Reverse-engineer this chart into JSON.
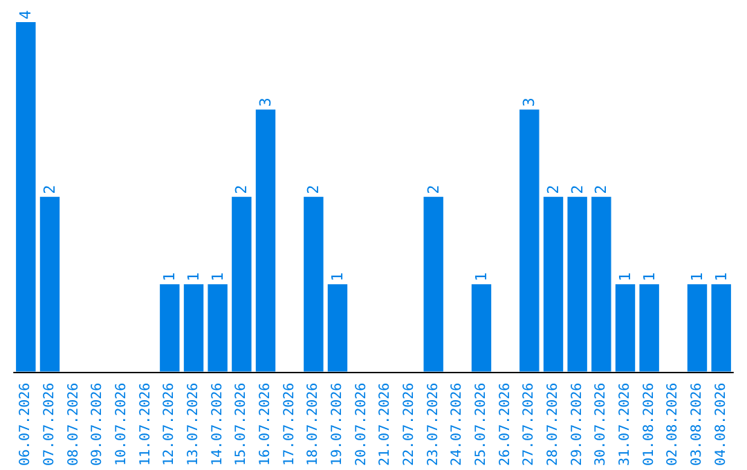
{
  "chart_data": {
    "type": "bar",
    "categories": [
      "06.07.2026",
      "07.07.2026",
      "08.07.2026",
      "09.07.2026",
      "10.07.2026",
      "11.07.2026",
      "12.07.2026",
      "13.07.2026",
      "14.07.2026",
      "15.07.2026",
      "16.07.2026",
      "17.07.2026",
      "18.07.2026",
      "19.07.2026",
      "20.07.2026",
      "21.07.2026",
      "22.07.2026",
      "23.07.2026",
      "24.07.2026",
      "25.07.2026",
      "26.07.2026",
      "27.07.2026",
      "28.07.2026",
      "29.07.2026",
      "30.07.2026",
      "31.07.2026",
      "01.08.2026",
      "02.08.2026",
      "03.08.2026",
      "04.08.2026"
    ],
    "values": [
      4,
      2,
      0,
      0,
      0,
      0,
      1,
      1,
      1,
      2,
      3,
      0,
      2,
      1,
      0,
      0,
      0,
      2,
      0,
      1,
      0,
      3,
      2,
      2,
      2,
      1,
      1,
      0,
      1,
      1
    ],
    "value_labels": [
      "4",
      "2",
      null,
      null,
      null,
      null,
      "1",
      "1",
      "1",
      "2",
      "3",
      null,
      "2",
      "1",
      null,
      null,
      null,
      "2",
      null,
      "1",
      null,
      "3",
      "2",
      "2",
      "2",
      "1",
      "1",
      null,
      "1",
      "1"
    ],
    "color": "#0080e6",
    "grid": false,
    "tick_labels": "x"
  }
}
